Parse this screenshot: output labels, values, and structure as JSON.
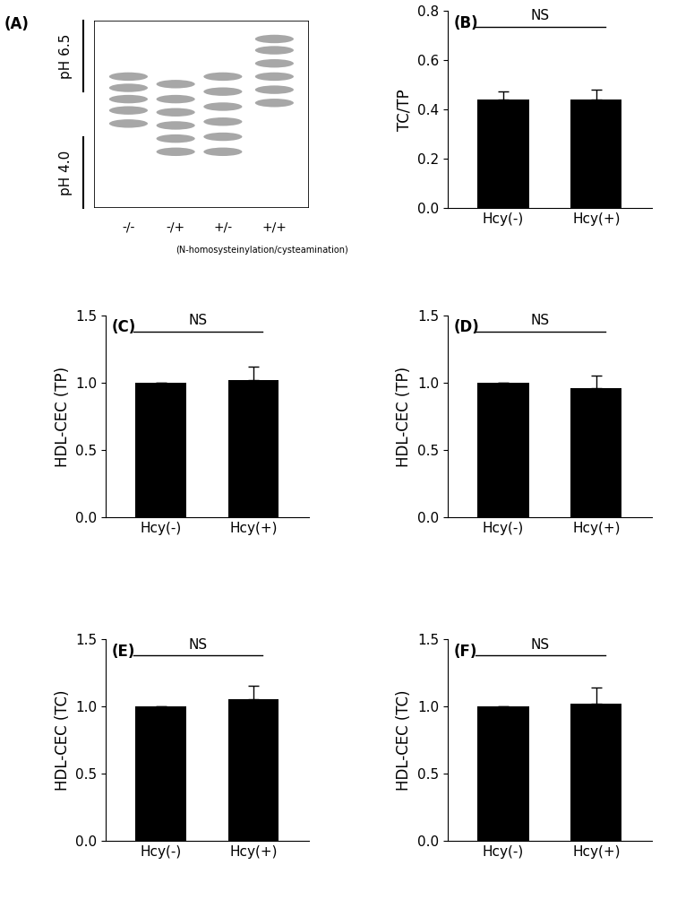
{
  "gel": {
    "title": "(A)",
    "lanes": [
      "-/-",
      "-/+",
      "+/-",
      "+/+"
    ],
    "caption": "(N-homosysteinylation/cysteamination)",
    "ph_labels": [
      "pH 6.5",
      "pH 4.0"
    ]
  },
  "chart_data": [
    {
      "type": "bar",
      "title": "(B)",
      "categories": [
        "Hcy(-)",
        "Hcy(+)"
      ],
      "values": [
        0.44,
        0.44
      ],
      "errors": [
        0.035,
        0.04
      ],
      "color": "#000000",
      "ylabel": "TC/TP",
      "ylim": [
        0,
        0.8
      ],
      "yticks": [
        {
          "value": 0,
          "label": "0.0"
        },
        0.2,
        0.4,
        0.6,
        0.8
      ],
      "annotations": [
        {
          "text": "NS"
        }
      ]
    },
    {
      "type": "bar",
      "title": "(C)",
      "categories": [
        "Hcy(-)",
        "Hcy(+)"
      ],
      "values": [
        1.0,
        1.02
      ],
      "errors": [
        0,
        0.1
      ],
      "color": "#000000",
      "ylabel": "HDL-CEC (TP)",
      "ylim": [
        0,
        1.5
      ],
      "yticks": [
        {
          "value": 0,
          "label": "0.0"
        },
        0.5,
        {
          "value": 1,
          "label": "1.0"
        },
        1.5
      ],
      "annotations": [
        {
          "text": "NS"
        }
      ]
    },
    {
      "type": "bar",
      "title": "(D)",
      "categories": [
        "Hcy(-)",
        "Hcy(+)"
      ],
      "values": [
        1.0,
        0.96
      ],
      "errors": [
        0,
        0.09
      ],
      "color": "#000000",
      "ylabel": "HDL-CEC (TP)",
      "ylim": [
        0,
        1.5
      ],
      "yticks": [
        {
          "value": 0,
          "label": "0.0"
        },
        0.5,
        {
          "value": 1,
          "label": "1.0"
        },
        1.5
      ],
      "annotations": [
        {
          "text": "NS"
        }
      ]
    },
    {
      "type": "bar",
      "title": "(E)",
      "categories": [
        "Hcy(-)",
        "Hcy(+)"
      ],
      "values": [
        1.0,
        1.055
      ],
      "errors": [
        0,
        0.1
      ],
      "color": "#000000",
      "ylabel": "HDL-CEC (TC)",
      "ylim": [
        0,
        1.5
      ],
      "yticks": [
        {
          "value": 0,
          "label": "0.0"
        },
        0.5,
        {
          "value": 1,
          "label": "1.0"
        },
        1.5
      ],
      "annotations": [
        {
          "text": "NS"
        }
      ]
    },
    {
      "type": "bar",
      "title": "(F)",
      "categories": [
        "Hcy(-)",
        "Hcy(+)"
      ],
      "values": [
        1.0,
        1.02
      ],
      "errors": [
        0,
        0.12
      ],
      "color": "#000000",
      "ylabel": "HDL-CEC (TC)",
      "ylim": [
        0,
        1.5
      ],
      "yticks": [
        {
          "value": 0,
          "label": "0.0"
        },
        0.5,
        {
          "value": 1,
          "label": "1.0"
        },
        1.5
      ],
      "annotations": [
        {
          "text": "NS"
        }
      ]
    }
  ]
}
